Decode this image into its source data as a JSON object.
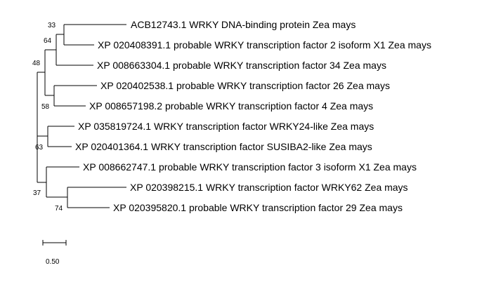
{
  "tree": {
    "leaves": [
      "ACB12743.1 WRKY DNA-binding protein Zea mays",
      "XP 020408391.1 probable WRKY transcription factor 2 isoform X1 Zea mays",
      "XP 008663304.1 probable WRKY transcription factor 34 Zea mays",
      "XP 020402538.1 probable WRKY transcription factor 26 Zea mays",
      "XP 008657198.2 probable WRKY transcription factor 4 Zea mays",
      "XP 035819724.1 WRKY transcription factor WRKY24-like Zea mays",
      "XP 020401364.1 WRKY transcription factor SUSIBA2-like Zea mays",
      "XP 008662747.1 probable WRKY transcription factor 3 isoform X1 Zea mays",
      "XP 020398215.1 WRKY transcription factor WRKY62 Zea mays",
      "XP 020395820.1 probable WRKY transcription factor 29 Zea mays"
    ],
    "bootstrap": {
      "n33": "33",
      "n64": "64",
      "n48": "48",
      "n58": "58",
      "n63": "63",
      "n37": "37",
      "n74": "74"
    }
  },
  "scale_bar": {
    "label": "0.50"
  },
  "colors": {
    "line": "#000000",
    "text": "#000000",
    "background": "#ffffff"
  }
}
